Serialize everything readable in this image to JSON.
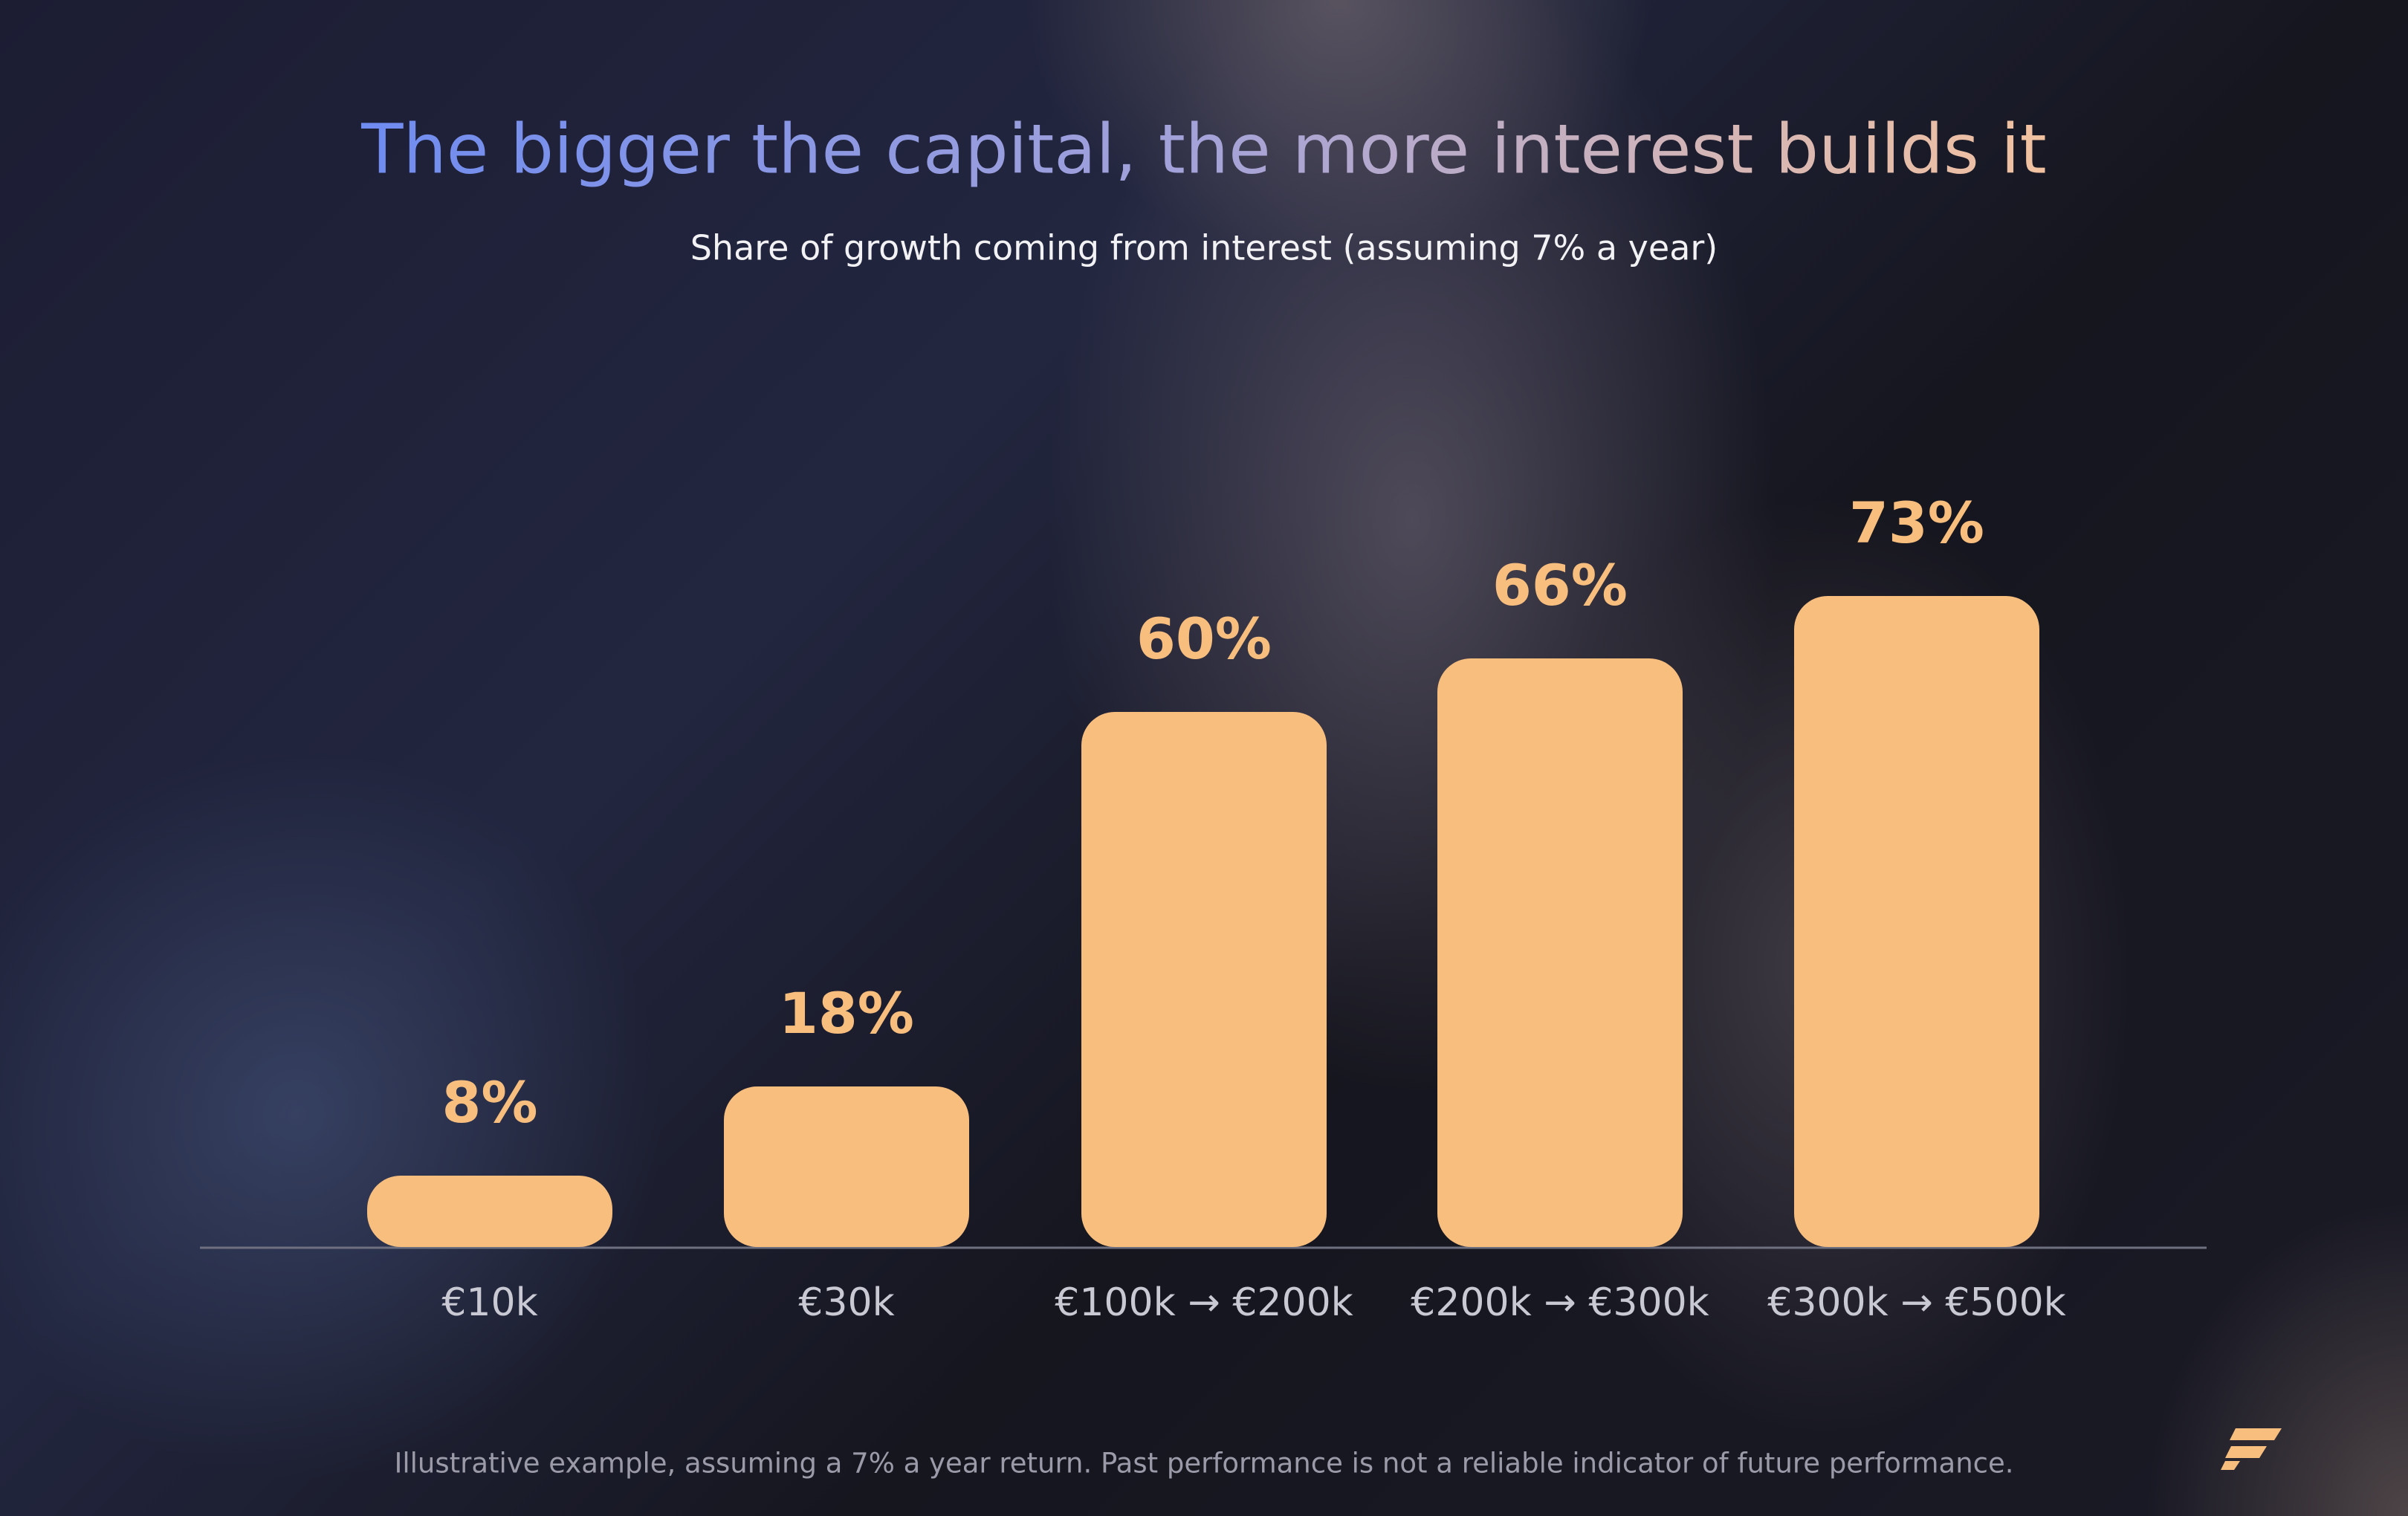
{
  "chart_data": {
    "type": "bar",
    "title": "The bigger the capital, the more interest builds it",
    "subtitle": "Share of growth coming from interest (assuming 7% a year)",
    "categories": [
      "€10k",
      "€30k",
      "€100k → €200k",
      "€200k → €300k",
      "€300k → €500k"
    ],
    "values": [
      8,
      18,
      60,
      66,
      73
    ],
    "value_labels": [
      "8%",
      "18%",
      "60%",
      "66%",
      "73%"
    ],
    "color": "#f8be7e",
    "footnote": "Illustrative example, assuming a 7% a year return. Past performance is not a reliable indicator of future performance."
  }
}
